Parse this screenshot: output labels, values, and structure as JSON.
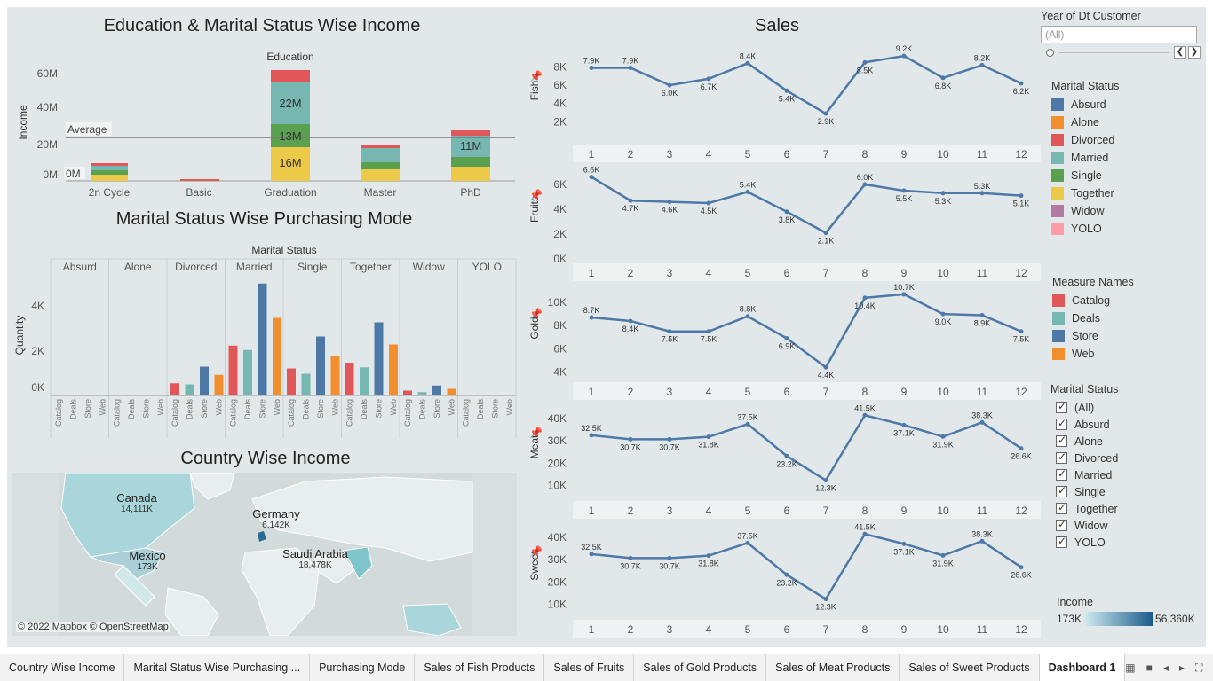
{
  "titles": {
    "edu": "Education & Marital Status Wise Income",
    "purchase": "Marital Status Wise Purchasing Mode",
    "country": "Country Wise Income",
    "sales": "Sales"
  },
  "edu_chart": {
    "header": "Education",
    "ylabel": "Income",
    "yticks": [
      "60M",
      "40M",
      "20M",
      "0M"
    ],
    "average_label": "Average",
    "categories": [
      "2n Cycle",
      "Basic",
      "Graduation",
      "Master",
      "PhD"
    ],
    "labels": {
      "grad_married": "22M",
      "grad_single": "13M",
      "grad_together": "16M",
      "phd_married": "11M",
      "zero": "0M"
    }
  },
  "purchase_chart": {
    "header": "Marital Status",
    "ylabel": "Quantity",
    "groups": [
      "Absurd",
      "Alone",
      "Divorced",
      "Married",
      "Single",
      "Together",
      "Widow",
      "YOLO"
    ],
    "measures": [
      "Catalog",
      "Deals",
      "Store",
      "Web"
    ],
    "yticks": [
      "4K",
      "2K",
      "0K"
    ]
  },
  "map": {
    "credit": "© 2022 Mapbox © OpenStreetMap",
    "countries": [
      {
        "name": "Canada",
        "value": "14,111K"
      },
      {
        "name": "Germany",
        "value": "6,142K"
      },
      {
        "name": "Mexico",
        "value": "173K"
      },
      {
        "name": "Saudi Arabia",
        "value": "18,478K"
      }
    ]
  },
  "chart_data": [
    {
      "type": "line",
      "name": "Fish",
      "x": [
        1,
        2,
        3,
        4,
        5,
        6,
        7,
        8,
        9,
        10,
        11,
        12
      ],
      "values": [
        7900,
        7900,
        6000,
        6700,
        8400,
        5400,
        2900,
        8500,
        9200,
        6800,
        8200,
        6200
      ],
      "labels": [
        "7.9K",
        "7.9K",
        "6.0K",
        "6.7K",
        "8.4K",
        "5.4K",
        "2.9K",
        "8.5K",
        "9.2K",
        "6.8K",
        "8.2K",
        "6.2K"
      ],
      "yticks": [
        "8K",
        "6K",
        "4K",
        "2K"
      ]
    },
    {
      "type": "line",
      "name": "Fruits",
      "x": [
        1,
        2,
        3,
        4,
        5,
        6,
        7,
        8,
        9,
        10,
        11,
        12
      ],
      "values": [
        6600,
        4700,
        4600,
        4500,
        5400,
        3800,
        2100,
        6000,
        5500,
        5300,
        5300,
        5100
      ],
      "labels": [
        "6.6K",
        "4.7K",
        "4.6K",
        "4.5K",
        "5.4K",
        "3.8K",
        "2.1K",
        "6.0K",
        "5.5K",
        "5.3K",
        "5.3K",
        "5.1K"
      ],
      "yticks": [
        "6K",
        "4K",
        "2K",
        "0K"
      ]
    },
    {
      "type": "line",
      "name": "Gold",
      "x": [
        1,
        2,
        3,
        4,
        5,
        6,
        7,
        8,
        9,
        10,
        11,
        12
      ],
      "values": [
        8700,
        8400,
        7500,
        7500,
        8800,
        6900,
        4400,
        10400,
        10700,
        9000,
        8900,
        7500
      ],
      "labels": [
        "8.7K",
        "8.4K",
        "7.5K",
        "7.5K",
        "8.8K",
        "6.9K",
        "4.4K",
        "10.4K",
        "10.7K",
        "9.0K",
        "8.9K",
        "7.5K"
      ],
      "yticks": [
        "10K",
        "8K",
        "6K",
        "4K"
      ]
    },
    {
      "type": "line",
      "name": "Meat",
      "x": [
        1,
        2,
        3,
        4,
        5,
        6,
        7,
        8,
        9,
        10,
        11,
        12
      ],
      "values": [
        32500,
        30700,
        30700,
        31800,
        37500,
        23200,
        12300,
        41500,
        37100,
        31900,
        38300,
        26600
      ],
      "labels": [
        "32.5K",
        "30.7K",
        "30.7K",
        "31.8K",
        "37.5K",
        "23.2K",
        "12.3K",
        "41.5K",
        "37.1K",
        "31.9K",
        "38.3K",
        "26.6K"
      ],
      "yticks": [
        "40K",
        "30K",
        "20K",
        "10K"
      ]
    },
    {
      "type": "line",
      "name": "Sweet",
      "x": [
        1,
        2,
        3,
        4,
        5,
        6,
        7,
        8,
        9,
        10,
        11,
        12
      ],
      "values": [
        32500,
        30700,
        30700,
        31800,
        37500,
        23200,
        12300,
        41500,
        37100,
        31900,
        38300,
        26600
      ],
      "labels": [
        "32.5K",
        "30.7K",
        "30.7K",
        "31.8K",
        "37.5K",
        "23.2K",
        "12.3K",
        "41.5K",
        "37.1K",
        "31.9K",
        "38.3K",
        "26.6K"
      ],
      "yticks": [
        "40K",
        "30K",
        "20K",
        "10K"
      ]
    }
  ],
  "sidebar": {
    "year_filter": {
      "label": "Year of Dt Customer",
      "value": "(All)"
    },
    "marital_legend": {
      "title": "Marital Status",
      "items": [
        "Absurd",
        "Alone",
        "Divorced",
        "Married",
        "Single",
        "Together",
        "Widow",
        "YOLO"
      ]
    },
    "measure_legend": {
      "title": "Measure Names",
      "items": [
        "Catalog",
        "Deals",
        "Store",
        "Web"
      ]
    },
    "marital_filter": {
      "title": "Marital Status",
      "items": [
        "(All)",
        "Absurd",
        "Alone",
        "Divorced",
        "Married",
        "Single",
        "Together",
        "Widow",
        "YOLO"
      ]
    },
    "income": {
      "title": "Income",
      "min": "173K",
      "max": "56,360K"
    }
  },
  "colors": {
    "absurd": "#4e79a7",
    "alone": "#f28e2b",
    "divorced": "#e15759",
    "married": "#76b7b2",
    "single": "#59a14f",
    "together": "#edc948",
    "widow": "#b07aa1",
    "yolo": "#ff9da7",
    "line": "#4e79a7"
  },
  "tabs": [
    "Country Wise Income",
    "Marital Status Wise Purchasing ...",
    "Purchasing Mode",
    "Sales of Fish Products",
    "Sales of Fruits",
    "Sales of Gold Products",
    "Sales of Meat Products",
    "Sales of Sweet Products",
    "Dashboard 1"
  ]
}
